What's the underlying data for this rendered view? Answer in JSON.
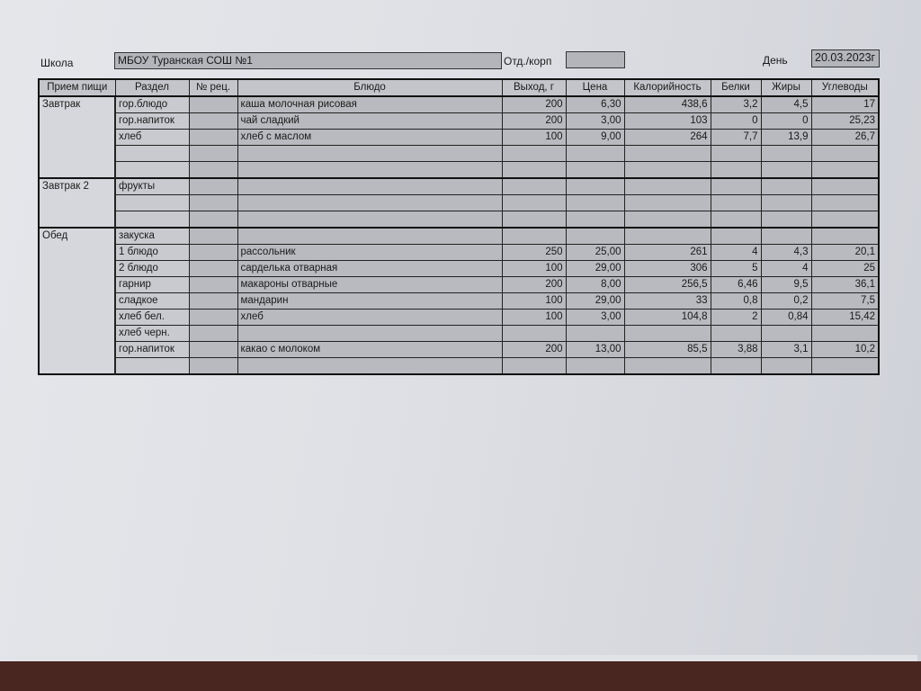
{
  "header": {
    "school_label": "Школа",
    "school_value": "МБОУ Туранская СОШ №1",
    "dept_label": "Отд./корп",
    "dept_value": "",
    "day_label": "День",
    "day_value": "20.03.2023г"
  },
  "table": {
    "columns": [
      "Прием пищи",
      "Раздел",
      "№ рец.",
      "Блюдо",
      "Выход, г",
      "Цена",
      "Калорийность",
      "Белки",
      "Жиры",
      "Углеводы"
    ],
    "groups": [
      {
        "meal": "Завтрак",
        "rows": [
          {
            "section": "гор.блюдо",
            "recipe": "",
            "dish": "каша молочная рисовая",
            "yield": "200",
            "price": "6,30",
            "calories": "438,6",
            "protein": "3,2",
            "fat": "4,5",
            "carbs": "17"
          },
          {
            "section": "гор.напиток",
            "recipe": "",
            "dish": "чай сладкий",
            "yield": "200",
            "price": "3,00",
            "calories": "103",
            "protein": "0",
            "fat": "0",
            "carbs": "25,23"
          },
          {
            "section": "хлеб",
            "recipe": "",
            "dish": "хлеб с маслом",
            "yield": "100",
            "price": "9,00",
            "calories": "264",
            "protein": "7,7",
            "fat": "13,9",
            "carbs": "26,7"
          },
          {
            "section": "",
            "recipe": "",
            "dish": "",
            "yield": "",
            "price": "",
            "calories": "",
            "protein": "",
            "fat": "",
            "carbs": ""
          },
          {
            "section": "",
            "recipe": "",
            "dish": "",
            "yield": "",
            "price": "",
            "calories": "",
            "protein": "",
            "fat": "",
            "carbs": ""
          }
        ]
      },
      {
        "meal": "Завтрак 2",
        "rows": [
          {
            "section": "фрукты",
            "recipe": "",
            "dish": "",
            "yield": "",
            "price": "",
            "calories": "",
            "protein": "",
            "fat": "",
            "carbs": ""
          },
          {
            "section": "",
            "recipe": "",
            "dish": "",
            "yield": "",
            "price": "",
            "calories": "",
            "protein": "",
            "fat": "",
            "carbs": ""
          },
          {
            "section": "",
            "recipe": "",
            "dish": "",
            "yield": "",
            "price": "",
            "calories": "",
            "protein": "",
            "fat": "",
            "carbs": ""
          }
        ]
      },
      {
        "meal": "Обед",
        "rows": [
          {
            "section": "закуска",
            "recipe": "",
            "dish": "",
            "yield": "",
            "price": "",
            "calories": "",
            "protein": "",
            "fat": "",
            "carbs": ""
          },
          {
            "section": "1 блюдо",
            "recipe": "",
            "dish": "рассольник",
            "yield": "250",
            "price": "25,00",
            "calories": "261",
            "protein": "4",
            "fat": "4,3",
            "carbs": "20,1"
          },
          {
            "section": "2 блюдо",
            "recipe": "",
            "dish": "сарделька отварная",
            "yield": "100",
            "price": "29,00",
            "calories": "306",
            "protein": "5",
            "fat": "4",
            "carbs": "25"
          },
          {
            "section": "гарнир",
            "recipe": "",
            "dish": "макароны отварные",
            "yield": "200",
            "price": "8,00",
            "calories": "256,5",
            "protein": "6,46",
            "fat": "9,5",
            "carbs": "36,1"
          },
          {
            "section": "сладкое",
            "recipe": "",
            "dish": "мандарин",
            "yield": "100",
            "price": "29,00",
            "calories": "33",
            "protein": "0,8",
            "fat": "0,2",
            "carbs": "7,5"
          },
          {
            "section": "хлеб бел.",
            "recipe": "",
            "dish": "хлеб",
            "yield": "100",
            "price": "3,00",
            "calories": "104,8",
            "protein": "2",
            "fat": "0,84",
            "carbs": "15,42"
          },
          {
            "section": "хлеб черн.",
            "recipe": "",
            "dish": "",
            "yield": "",
            "price": "",
            "calories": "",
            "protein": "",
            "fat": "",
            "carbs": ""
          },
          {
            "section": "гор.напиток",
            "recipe": "",
            "dish": "какао с молоком",
            "yield": "200",
            "price": "13,00",
            "calories": "85,5",
            "protein": "3,88",
            "fat": "3,1",
            "carbs": "10,2"
          },
          {
            "section": "",
            "recipe": "",
            "dish": "",
            "yield": "",
            "price": "",
            "calories": "",
            "protein": "",
            "fat": "",
            "carbs": ""
          }
        ]
      }
    ]
  }
}
